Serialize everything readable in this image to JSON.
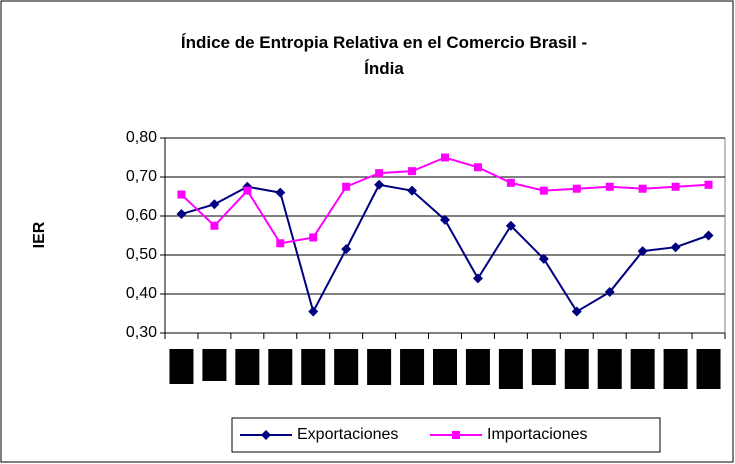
{
  "chart_data": {
    "type": "line",
    "title": "Índice de Entropia Relativa en el Comercio Brasil - Índia",
    "y_label": "IER",
    "categories": [
      null,
      null,
      null,
      null,
      null,
      null,
      null,
      null,
      null,
      null,
      null,
      null,
      null,
      null,
      null,
      null,
      null
    ],
    "series": [
      {
        "name": "Exportaciones",
        "color": "#000080",
        "marker": "diamond",
        "values": [
          0.605,
          0.63,
          0.675,
          0.66,
          0.355,
          0.515,
          0.68,
          0.665,
          0.59,
          0.44,
          0.575,
          0.49,
          0.355,
          0.405,
          0.51,
          0.52,
          0.55
        ]
      },
      {
        "name": "Importaciones",
        "color": "#ff00ff",
        "marker": "square",
        "values": [
          0.655,
          0.575,
          0.665,
          0.53,
          0.545,
          0.675,
          0.71,
          0.715,
          0.75,
          0.725,
          0.685,
          0.665,
          0.67,
          0.675,
          0.67,
          0.675,
          0.68
        ]
      }
    ],
    "ylim": [
      0.3,
      0.8
    ],
    "yticks": [
      {
        "value": 0.3,
        "label": "0,30"
      },
      {
        "value": 0.4,
        "label": "0,40"
      },
      {
        "value": 0.5,
        "label": "0,50"
      },
      {
        "value": 0.6,
        "label": "0,60"
      },
      {
        "value": 0.7,
        "label": "0,70"
      },
      {
        "value": 0.8,
        "label": "0,80"
      }
    ],
    "grid": true,
    "legend": "bottom"
  }
}
